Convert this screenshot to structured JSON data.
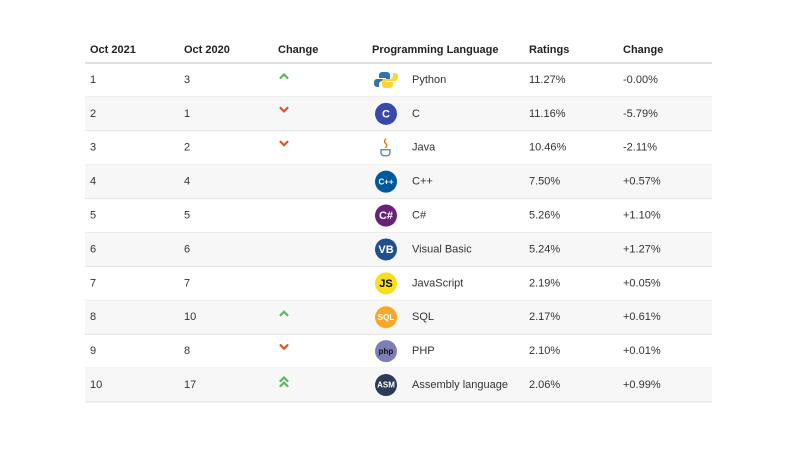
{
  "table": {
    "header": [
      "Oct 2021",
      "Oct 2020",
      "Change",
      "Programming Language",
      "Ratings",
      "Change"
    ],
    "rows": [
      {
        "cells": [
          "1",
          "3",
          "Python",
          "11.27%",
          "-0.00%"
        ],
        "trend": "up",
        "icon": {
          "shape": "python"
        }
      },
      {
        "cells": [
          "2",
          "1",
          "C",
          "11.16%",
          "-5.79%"
        ],
        "trend": "down",
        "icon": {
          "shape": "circle",
          "bg": "#3949ab",
          "fg": "#ffffff",
          "text": "C"
        }
      },
      {
        "cells": [
          "3",
          "2",
          "Java",
          "10.46%",
          "-2.11%"
        ],
        "trend": "down",
        "icon": {
          "shape": "java"
        }
      },
      {
        "cells": [
          "4",
          "4",
          "C++",
          "7.50%",
          "+0.57%"
        ],
        "trend": null,
        "icon": {
          "shape": "circle",
          "bg": "#00599c",
          "fg": "#ffffff",
          "text": "C++"
        }
      },
      {
        "cells": [
          "5",
          "5",
          "C#",
          "5.26%",
          "+1.10%"
        ],
        "trend": null,
        "icon": {
          "shape": "circle",
          "bg": "#68217a",
          "fg": "#ffffff",
          "text": "C#"
        }
      },
      {
        "cells": [
          "6",
          "6",
          "Visual Basic",
          "5.24%",
          "+1.27%"
        ],
        "trend": null,
        "icon": {
          "shape": "circle",
          "bg": "#1f4f8f",
          "fg": "#ffffff",
          "text": "VB"
        }
      },
      {
        "cells": [
          "7",
          "7",
          "JavaScript",
          "2.19%",
          "+0.05%"
        ],
        "trend": null,
        "icon": {
          "shape": "circle",
          "bg": "#f7df1e",
          "fg": "#000000",
          "text": "JS"
        }
      },
      {
        "cells": [
          "8",
          "10",
          "SQL",
          "2.17%",
          "+0.61%"
        ],
        "trend": "up",
        "icon": {
          "shape": "circle",
          "bg": "#f9a825",
          "fg": "#ffffff",
          "text": "SQL"
        }
      },
      {
        "cells": [
          "9",
          "8",
          "PHP",
          "2.10%",
          "+0.01%"
        ],
        "trend": "down",
        "icon": {
          "shape": "circle",
          "bg": "#7b7fb5",
          "fg": "#111111",
          "text": "php"
        }
      },
      {
        "cells": [
          "10",
          "17",
          "Assembly language",
          "2.06%",
          "+0.99%"
        ],
        "trend": "double-up",
        "icon": {
          "shape": "circle",
          "bg": "#2b3a55",
          "fg": "#ffffff",
          "text": "ASM"
        }
      }
    ]
  }
}
